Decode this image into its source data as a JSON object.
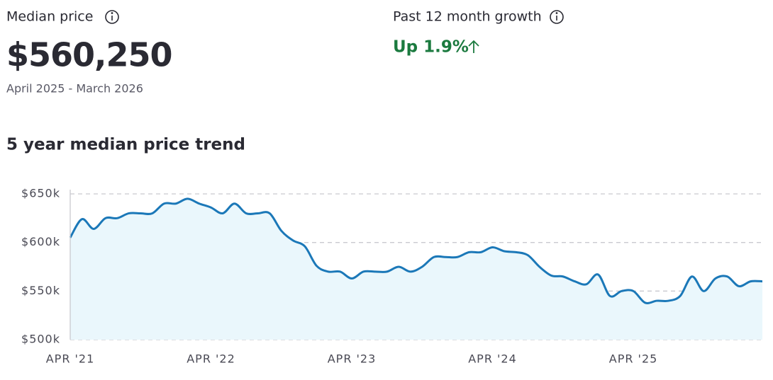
{
  "median_price": {
    "label": "Median price",
    "value": "$560,250",
    "period": "April 2025 - March 2026"
  },
  "growth": {
    "label": "Past 12 month growth",
    "value": "Up 1.9%"
  },
  "chart_data": {
    "type": "line",
    "title": "5 year median price trend",
    "categories": [
      "APR '21",
      null,
      null,
      null,
      null,
      null,
      null,
      null,
      null,
      null,
      null,
      null,
      "APR '22",
      null,
      null,
      null,
      null,
      null,
      null,
      null,
      null,
      null,
      null,
      null,
      "APR '23",
      null,
      null,
      null,
      null,
      null,
      null,
      null,
      null,
      null,
      null,
      null,
      "APR '24",
      null,
      null,
      null,
      null,
      null,
      null,
      null,
      null,
      null,
      null,
      null,
      "APR '25",
      null,
      null,
      null,
      null,
      null,
      null,
      null,
      null,
      null,
      null,
      null
    ],
    "series": [
      {
        "color": "#1b78b8",
        "values": [
          605000,
          624000,
          614000,
          625000,
          625000,
          630000,
          630000,
          630000,
          640000,
          640000,
          645000,
          640000,
          636000,
          630000,
          640000,
          630000,
          630000,
          630000,
          612000,
          602000,
          596000,
          576000,
          570000,
          570000,
          563000,
          570000,
          570000,
          570000,
          575000,
          570000,
          575000,
          585000,
          585000,
          585000,
          590000,
          590000,
          595000,
          591000,
          590000,
          587000,
          575000,
          566000,
          565000,
          560000,
          557000,
          567000,
          545000,
          550000,
          550000,
          538000,
          540000,
          540000,
          545000,
          565000,
          550000,
          563000,
          565000,
          555000,
          560000,
          560000
        ]
      }
    ],
    "ylim": [
      500000,
      650000
    ],
    "yticks": [
      {
        "value": 500000,
        "label": "$500k"
      },
      {
        "value": 550000,
        "label": "$550k"
      },
      {
        "value": 600000,
        "label": "$600k"
      },
      {
        "value": 650000,
        "label": "$650k"
      }
    ],
    "grid": true
  }
}
